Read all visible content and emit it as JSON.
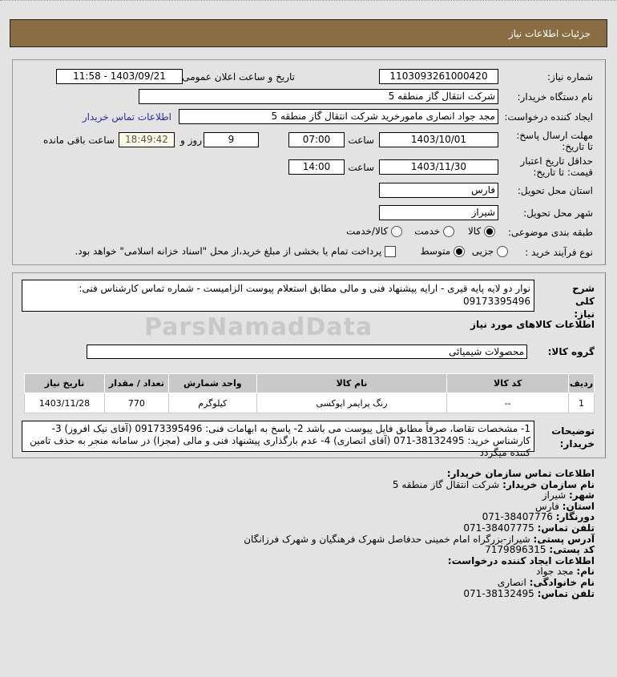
{
  "header": {
    "title": "جزئیات اطلاعات نیاز"
  },
  "watermark": "ParsNamadData",
  "form": {
    "need_number_label": "شماره نیاز:",
    "need_number": "1103093261000420",
    "announce_label": "تاریخ و ساعت اعلان عمومی:",
    "announce_value": "1403/09/21 - 11:58",
    "buyer_label": "نام دستگاه خریدار:",
    "buyer_value": "شرکت انتقال گاز منطقه 5",
    "creator_label": "ایجاد کننده درخواست:",
    "creator_value": "مجد جواد انصاری مامورخرید شرکت انتقال گاز منطقه 5",
    "buyer_contact_link": "اطلاعات تماس خریدار",
    "deadline_label": "مهلت ارسال پاسخ: تا تاریخ:",
    "deadline_date": "1403/10/01",
    "time_label": "ساعت",
    "deadline_time": "07:00",
    "days": "9",
    "days_label": "روز و",
    "remaining": "18:49:42",
    "remaining_label": "ساعت باقی مانده",
    "validity_label": "حداقل تاریخ اعتبار قیمت: تا تاریخ:",
    "validity_date": "1403/11/30",
    "validity_time": "14:00",
    "province_label": "استان محل تحویل:",
    "province": "فارس",
    "city_label": "شهر محل تحویل:",
    "city": "شیراز",
    "category_label": "طبقه بندی موضوعی:",
    "category_options": [
      "کالا",
      "خدمت",
      "کالا/خدمت"
    ],
    "category_selected": "کالا",
    "process_label": "نوع فرآیند خرید :",
    "process_options": [
      "جزیی",
      "متوسط"
    ],
    "process_selected": "متوسط",
    "payment_text": "پرداخت تمام یا بخشی از مبلغ خرید،از محل \"اسناد خزانه اسلامی\" خواهد بود.",
    "payment_checked": false
  },
  "details": {
    "description_label": "شرح کلی نیاز:",
    "description": "نوار دو لایه پایه قیری - ارایه پیشنهاد فنی و مالی مطابق استعلام پیوست الزامیست - شماره تماس کارشناس فنی: 09173395496",
    "goods_title": "اطلاعات کالاهای مورد نیاز",
    "group_label": "گروه کالا:",
    "group_value": "محصولات شیمیائی",
    "table": {
      "headers": [
        "ردیف",
        "کد کالا",
        "نام کالا",
        "واحد شمارش",
        "تعداد / مقدار",
        "تاریخ نیاز"
      ],
      "rows": [
        [
          "1",
          "--",
          "رنگ پرایمر اپوکسی",
          "کیلوگرم",
          "770",
          "1403/11/28"
        ]
      ]
    },
    "notes_label": "توضیحات خریدار:",
    "notes": "1- مشخصات تقاضا، صرفاً مطابق فایل پیوست می باشد 2- پاسخ به ابهامات فنی: 09173395496 (آقای نیک افروز) 3- کارشناس خرید: 38132495-071 (آقای انصاری) 4- عدم بارگذاری پیشنهاد فنی و مالی (مجزا) در سامانه منجر به حذف تامین کننده میگردد"
  },
  "contact": {
    "title": "اطلاعات تماس سازمان خریدار:",
    "org_label": "نام سازمان خریدار:",
    "org": "شرکت انتقال گاز منطقه 5",
    "city_label": "شهر:",
    "city": "شیراز",
    "province_label": "استان:",
    "province": "فارس",
    "fax_label": "دورنگار:",
    "fax": "38407776-071",
    "phone_label": "تلفن تماس:",
    "phone": "38407775-071",
    "address_label": "آدرس پستی:",
    "address": "شیراز-بزرگراه امام خمینی حدفاصل شهرک فرهنگیان و شهرک فرزانگان",
    "postal_label": "کد پستی:",
    "postal": "7179896315",
    "creator_title": "اطلاعات ایجاد کننده درخواست:",
    "name_label": "نام:",
    "name": "مجد جواد",
    "family_label": "نام خانوادگی:",
    "family": "انصاری",
    "creator_phone_label": "تلفن تماس:",
    "creator_phone": "38132495-071"
  }
}
